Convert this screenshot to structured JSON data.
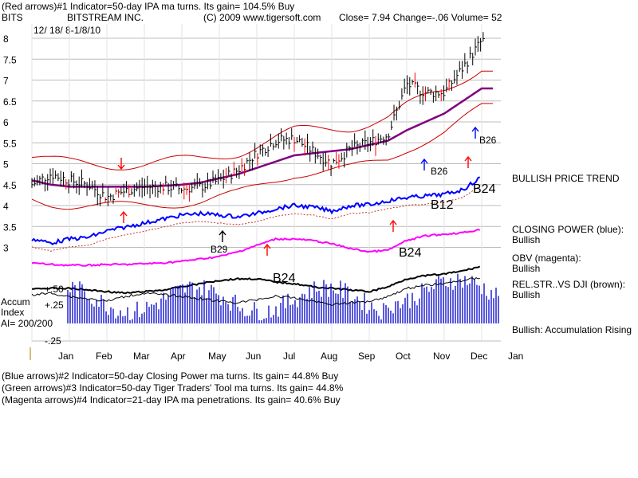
{
  "header": {
    "line1": "(Red arrows)#1 Indicator=50-day IPA ma turns. Its gain= 104.5% Buy",
    "symbol": "BITS",
    "company": "BITSTREAM INC.",
    "copyright": "(C) 2009 www.tigersoft.com",
    "close": "Close=  7.94  Change=-.06 Volume= 52",
    "dates": "12/ 18/ 8-1/8/10"
  },
  "labels": {
    "bullish_trend": "BULLISH PRICE TREND",
    "closing_power": "CLOSING POWER (blue):",
    "closing_power_v": "Bullish",
    "obv": "OBV (magenta):",
    "obv_v": "Bullish",
    "relstr": "REL.STR..VS DJI (brown):",
    "relstr_v": "Bullish",
    "accum": "Bullish: Accumulation Rising",
    "accum_index_1": "Accum",
    "accum_index_2": "Index",
    "ai": "AI= 200/200"
  },
  "footer": [
    "(Blue arrows)#2 Indicator=50-day Closing Power ma turns. Its gain= 44.8% Buy",
    "(Green arrows)#3 Indicator=50-day Tiger Traders' Tool ma turns. Its gain= 44.8%",
    "(Magenta arrows)#4 Indicator=21-day IPA ma penetrations. Its gain= 40.6% Buy"
  ],
  "colors": {
    "price_bar": "#000000",
    "band": "#cc0000",
    "ma50": "#800080",
    "closing_power": "#0000ff",
    "obv": "#ff00ff",
    "relstr": "#000000",
    "accum": "#0000cc",
    "buy_red": "#ff0000",
    "buy_blue": "#0000ff"
  },
  "chart_data": {
    "type": "line",
    "title": "BITSTREAM INC.",
    "price_axis": {
      "ticks": [
        "8",
        "7.5",
        "7",
        "6.5",
        "6",
        "5.5",
        "5",
        "4.5",
        "4",
        "3.5",
        "3"
      ],
      "ylim": [
        2.8,
        8.2
      ]
    },
    "accum_axis": {
      "ticks": [
        "+.50",
        "+.25",
        "-.25"
      ]
    },
    "x_months": [
      "Jan",
      "Feb",
      "Mar",
      "Apr",
      "May",
      "Jun",
      "Jul",
      "Aug",
      "Sep",
      "Oct",
      "Nov",
      "Dec",
      "Jan"
    ],
    "price_series": {
      "name": "",
      "months": [
        0,
        0.5,
        1,
        1.5,
        2,
        2.5,
        3,
        3.5,
        4,
        4.5,
        5,
        5.5,
        6,
        6.5,
        7,
        7.5,
        8,
        8.5,
        9,
        9.5,
        10,
        10.5,
        11,
        11.5,
        12
      ],
      "close": [
        4.5,
        4.75,
        4.6,
        4.5,
        4.2,
        4.35,
        4.45,
        4.45,
        4.4,
        4.45,
        4.6,
        4.85,
        5.25,
        5.55,
        5.6,
        5.3,
        5.0,
        5.35,
        5.5,
        5.7,
        6.9,
        6.7,
        6.7,
        7.3,
        7.94
      ]
    },
    "ma50": [
      4.6,
      4.5,
      4.45,
      4.45,
      4.45,
      4.45,
      4.45,
      4.47,
      4.5,
      4.55,
      4.65,
      4.75,
      4.9,
      5.05,
      5.2,
      5.25,
      5.3,
      5.35,
      5.45,
      5.55,
      5.8,
      6.0,
      6.2,
      6.5,
      6.8
    ],
    "annotations": [
      "B29",
      "B24",
      "B24",
      "B12",
      "B24",
      "B26",
      "B26"
    ]
  }
}
